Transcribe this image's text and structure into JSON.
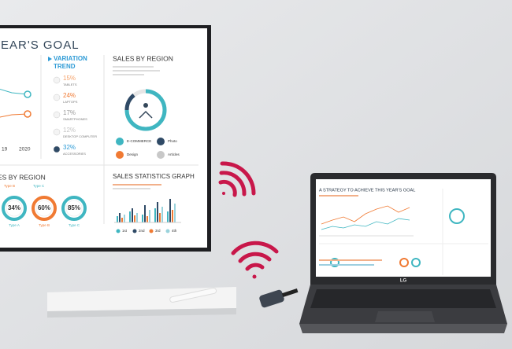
{
  "tv": {
    "title": "YEAR'S GOAL",
    "years": [
      "19",
      "2020"
    ],
    "trend_title": [
      "VARIATION",
      "TREND"
    ],
    "trend_items": [
      {
        "value": "15%",
        "label": "TABLETS"
      },
      {
        "value": "24%",
        "label": "LAPTOPS"
      },
      {
        "value": "17%",
        "label": "SMARTPHONES"
      },
      {
        "value": "12%",
        "label": "DESKTOP COMPUTER"
      },
      {
        "value": "32%",
        "label": "ACCESSORIES"
      }
    ],
    "region_title": "SALES BY REGION",
    "region_legend": [
      "E-COMMERCE",
      "Photo",
      "Design",
      "Articles"
    ],
    "bottom_region_title": "ES BY REGION",
    "bottom_region_types": [
      "Type B",
      "Type C"
    ],
    "donuts": [
      {
        "value": "34%",
        "label": "Type A"
      },
      {
        "value": "60%",
        "label": "Type B"
      },
      {
        "value": "85%",
        "label": "Type C"
      }
    ],
    "stats_title": "SALES STATISTICS GRAPH",
    "stats_legend": [
      "1st",
      "2nd",
      "3rd",
      "4th"
    ]
  },
  "laptop": {
    "title": "A STRATEGY TO ACHIEVE THIS YEAR'S GOAL",
    "brand": "LG"
  }
}
